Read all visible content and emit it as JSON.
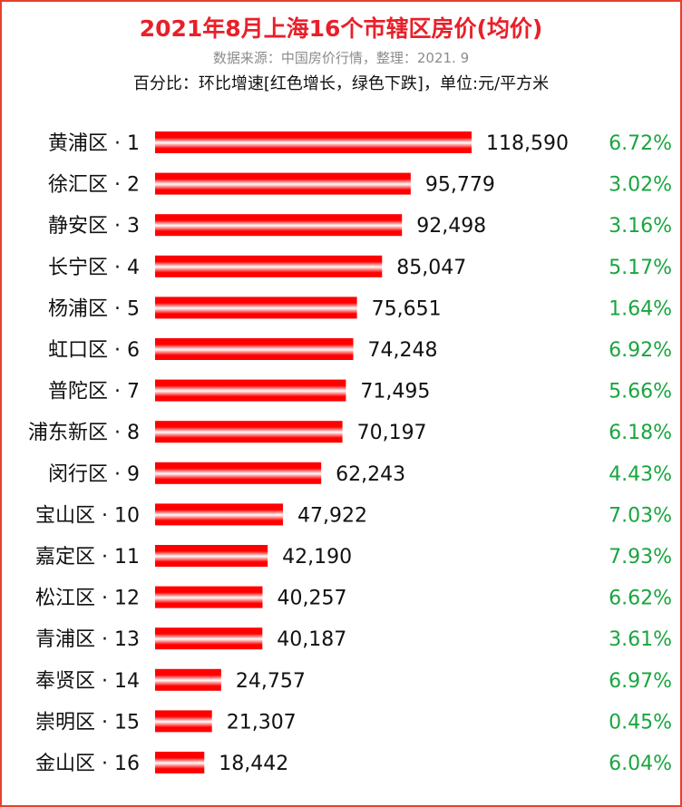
{
  "header": {
    "title": "2021年8月上海16个市辖区房价(均价)",
    "source": "数据来源：中国房价行情，整理：2021. 9",
    "note": "百分比：环比增速[红色增长，绿色下跌]，单位:元/平方米"
  },
  "colors": {
    "bar": "#ff0000",
    "bar_highlight": "#ffffff",
    "title": "#e8202a",
    "percent": "#1aa53f",
    "frame": "#e8402f"
  },
  "chart_data": {
    "type": "bar",
    "orientation": "horizontal",
    "categories": [
      "黄浦区 · 1",
      "徐汇区 · 2",
      "静安区 · 3",
      "长宁区 · 4",
      "杨浦区 · 5",
      "虹口区 · 6",
      "普陀区 · 7",
      "浦东新区 · 8",
      "闵行区 · 9",
      "宝山区 · 10",
      "嘉定区 · 11",
      "松江区 · 12",
      "青浦区 · 13",
      "奉贤区 · 14",
      "崇明区 · 15",
      "金山区 · 16"
    ],
    "values": [
      118590,
      95779,
      92498,
      85047,
      75651,
      74248,
      71495,
      70197,
      62243,
      47922,
      42190,
      40257,
      40187,
      24757,
      21307,
      18442
    ],
    "value_labels": [
      "118,590",
      "95,779",
      "92,498",
      "85,047",
      "75,651",
      "74,248",
      "71,495",
      "70,197",
      "62,243",
      "47,922",
      "42,190",
      "40,257",
      "40,187",
      "24,757",
      "21,307",
      "18,442"
    ],
    "mom_growth": [
      "6.72%",
      "3.02%",
      "3.16%",
      "5.17%",
      "1.64%",
      "6.92%",
      "5.66%",
      "6.18%",
      "4.43%",
      "7.03%",
      "7.93%",
      "6.62%",
      "3.61%",
      "6.97%",
      "0.45%",
      "6.04%"
    ],
    "xlim": [
      0,
      118590
    ],
    "grid": false,
    "legend": "none"
  }
}
